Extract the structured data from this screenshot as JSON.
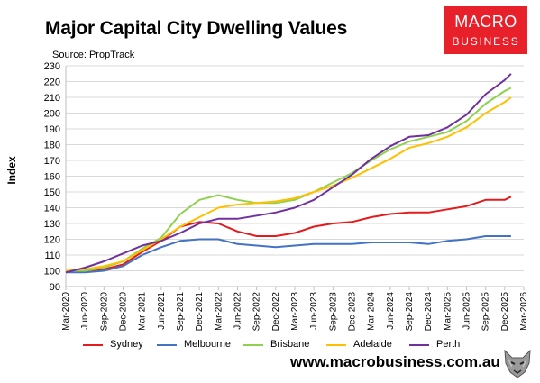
{
  "title": "Major Capital City Dwelling Values",
  "source": "Source: PropTrack",
  "logo": {
    "line1": "MACRO",
    "line2": "BUSINESS",
    "color": "#e8202a"
  },
  "website": "www.macrobusiness.com.au",
  "chart_data": {
    "type": "line",
    "title": "Major Capital City Dwelling Values",
    "ylabel": "Index",
    "xlabel": "",
    "ylim": [
      90,
      230
    ],
    "yticks": [
      90,
      100,
      110,
      120,
      130,
      140,
      150,
      160,
      170,
      180,
      190,
      200,
      210,
      220,
      230
    ],
    "xlim": [
      "2020-03",
      "2026-03"
    ],
    "xticks": [
      "Mar-2020",
      "Jun-2020",
      "Sep-2020",
      "Dec-2020",
      "Mar-2021",
      "Jun-2021",
      "Sep-2021",
      "Dec-2021",
      "Mar-2022",
      "Jun-2022",
      "Sep-2022",
      "Dec-2022",
      "Mar-2023",
      "Jun-2023",
      "Sep-2023",
      "Dec-2023",
      "Mar-2024",
      "Jun-2024",
      "Sep-2024",
      "Dec-2024",
      "Mar-2025",
      "Jun-2025",
      "Sep-2025",
      "Dec-2025",
      "Mar-2026"
    ],
    "grid": true,
    "legend_position": "bottom",
    "series": [
      {
        "name": "Sydney",
        "color": "#e41a1c",
        "points": [
          [
            "2020-03",
            100
          ],
          [
            "2020-06",
            100
          ],
          [
            "2020-09",
            101
          ],
          [
            "2020-12",
            104
          ],
          [
            "2021-03",
            112
          ],
          [
            "2021-06",
            119
          ],
          [
            "2021-09",
            128
          ],
          [
            "2021-12",
            131
          ],
          [
            "2022-03",
            130
          ],
          [
            "2022-06",
            125
          ],
          [
            "2022-09",
            122
          ],
          [
            "2022-12",
            122
          ],
          [
            "2023-03",
            124
          ],
          [
            "2023-06",
            128
          ],
          [
            "2023-09",
            130
          ],
          [
            "2023-12",
            131
          ],
          [
            "2024-03",
            134
          ],
          [
            "2024-06",
            136
          ],
          [
            "2024-09",
            137
          ],
          [
            "2024-12",
            137
          ],
          [
            "2025-03",
            139
          ],
          [
            "2025-06",
            141
          ],
          [
            "2025-09",
            145
          ],
          [
            "2025-12",
            145
          ],
          [
            "2026-01",
            147
          ]
        ]
      },
      {
        "name": "Melbourne",
        "color": "#4472c4",
        "points": [
          [
            "2020-03",
            99
          ],
          [
            "2020-06",
            99
          ],
          [
            "2020-09",
            100
          ],
          [
            "2020-12",
            103
          ],
          [
            "2021-03",
            110
          ],
          [
            "2021-06",
            115
          ],
          [
            "2021-09",
            119
          ],
          [
            "2021-12",
            120
          ],
          [
            "2022-03",
            120
          ],
          [
            "2022-06",
            117
          ],
          [
            "2022-09",
            116
          ],
          [
            "2022-12",
            115
          ],
          [
            "2023-03",
            116
          ],
          [
            "2023-06",
            117
          ],
          [
            "2023-09",
            117
          ],
          [
            "2023-12",
            117
          ],
          [
            "2024-03",
            118
          ],
          [
            "2024-06",
            118
          ],
          [
            "2024-09",
            118
          ],
          [
            "2024-12",
            117
          ],
          [
            "2025-03",
            119
          ],
          [
            "2025-06",
            120
          ],
          [
            "2025-09",
            122
          ],
          [
            "2025-12",
            122
          ],
          [
            "2026-01",
            122
          ]
        ]
      },
      {
        "name": "Brisbane",
        "color": "#8fd14f",
        "points": [
          [
            "2020-03",
            100
          ],
          [
            "2020-06",
            100
          ],
          [
            "2020-09",
            102
          ],
          [
            "2020-12",
            106
          ],
          [
            "2021-03",
            114
          ],
          [
            "2021-06",
            121
          ],
          [
            "2021-09",
            136
          ],
          [
            "2021-12",
            145
          ],
          [
            "2022-03",
            148
          ],
          [
            "2022-06",
            145
          ],
          [
            "2022-09",
            143
          ],
          [
            "2022-12",
            143
          ],
          [
            "2023-03",
            145
          ],
          [
            "2023-06",
            150
          ],
          [
            "2023-09",
            156
          ],
          [
            "2023-12",
            162
          ],
          [
            "2024-03",
            170
          ],
          [
            "2024-06",
            177
          ],
          [
            "2024-09",
            182
          ],
          [
            "2024-12",
            185
          ],
          [
            "2025-03",
            188
          ],
          [
            "2025-06",
            195
          ],
          [
            "2025-09",
            206
          ],
          [
            "2025-12",
            214
          ],
          [
            "2026-01",
            216
          ]
        ]
      },
      {
        "name": "Adelaide",
        "color": "#ffc000",
        "points": [
          [
            "2020-03",
            100
          ],
          [
            "2020-06",
            101
          ],
          [
            "2020-09",
            103
          ],
          [
            "2020-12",
            106
          ],
          [
            "2021-03",
            113
          ],
          [
            "2021-06",
            120
          ],
          [
            "2021-09",
            128
          ],
          [
            "2021-12",
            134
          ],
          [
            "2022-03",
            140
          ],
          [
            "2022-06",
            142
          ],
          [
            "2022-09",
            143
          ],
          [
            "2022-12",
            144
          ],
          [
            "2023-03",
            146
          ],
          [
            "2023-06",
            150
          ],
          [
            "2023-09",
            154
          ],
          [
            "2023-12",
            159
          ],
          [
            "2024-03",
            165
          ],
          [
            "2024-06",
            171
          ],
          [
            "2024-09",
            178
          ],
          [
            "2024-12",
            181
          ],
          [
            "2025-03",
            185
          ],
          [
            "2025-06",
            191
          ],
          [
            "2025-09",
            200
          ],
          [
            "2025-12",
            207
          ],
          [
            "2026-01",
            210
          ]
        ]
      },
      {
        "name": "Perth",
        "color": "#7030a0",
        "points": [
          [
            "2020-03",
            99
          ],
          [
            "2020-06",
            102
          ],
          [
            "2020-09",
            106
          ],
          [
            "2020-12",
            111
          ],
          [
            "2021-03",
            116
          ],
          [
            "2021-06",
            119
          ],
          [
            "2021-09",
            124
          ],
          [
            "2021-12",
            130
          ],
          [
            "2022-03",
            133
          ],
          [
            "2022-06",
            133
          ],
          [
            "2022-09",
            135
          ],
          [
            "2022-12",
            137
          ],
          [
            "2023-03",
            140
          ],
          [
            "2023-06",
            145
          ],
          [
            "2023-09",
            153
          ],
          [
            "2023-12",
            161
          ],
          [
            "2024-03",
            171
          ],
          [
            "2024-06",
            179
          ],
          [
            "2024-09",
            185
          ],
          [
            "2024-12",
            186
          ],
          [
            "2025-03",
            191
          ],
          [
            "2025-06",
            199
          ],
          [
            "2025-09",
            212
          ],
          [
            "2025-12",
            221
          ],
          [
            "2026-01",
            225
          ]
        ]
      }
    ]
  }
}
